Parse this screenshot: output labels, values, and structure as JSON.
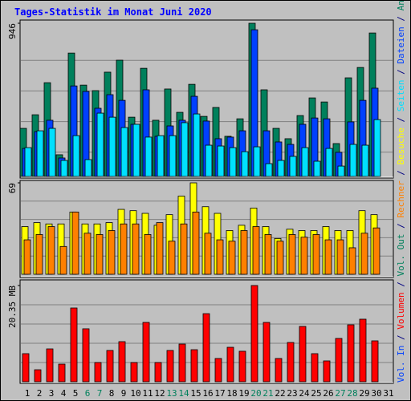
{
  "chart_data": [
    {
      "type": "bar",
      "title": "Tages-Statistik im Monat Juni 2020",
      "ylim": [
        0,
        946
      ],
      "yticks": [
        946
      ],
      "series": [
        {
          "name": "Anfragen",
          "color": "#00805c",
          "values": [
            297,
            381,
            579,
            134,
            762,
            564,
            530,
            644,
            718,
            366,
            668,
            347,
            540,
            396,
            569,
            371,
            426,
            248,
            356,
            946,
            535,
            297,
            233,
            376,
            485,
            460,
            203,
            609,
            673,
            886,
            null
          ]
        },
        {
          "name": "Dateien",
          "color": "#0040ff",
          "values": [
            173,
            277,
            347,
            114,
            559,
            525,
            421,
            505,
            470,
            322,
            535,
            248,
            312,
            347,
            495,
            342,
            233,
            243,
            282,
            906,
            282,
            213,
            198,
            322,
            361,
            356,
            149,
            337,
            470,
            545,
            null
          ]
        },
        {
          "name": "Seiten",
          "color": "#00e0ff",
          "values": [
            178,
            282,
            297,
            99,
            252,
            104,
            391,
            366,
            302,
            322,
            243,
            252,
            252,
            332,
            386,
            193,
            188,
            178,
            153,
            183,
            79,
            99,
            124,
            178,
            94,
            173,
            64,
            198,
            193,
            351,
            null
          ]
        }
      ]
    },
    {
      "type": "bar",
      "ylim": [
        0,
        69
      ],
      "yticks": [
        69
      ],
      "series": [
        {
          "name": "Besuche",
          "color": "#ffff00",
          "values": [
            36,
            39,
            38,
            38,
            47,
            38,
            38,
            39,
            49,
            48,
            46,
            37,
            45,
            59,
            69,
            51,
            46,
            33,
            37,
            50,
            36,
            27,
            34,
            33,
            33,
            36,
            33,
            33,
            48,
            45,
            null
          ]
        },
        {
          "name": "Rechner",
          "color": "#ff8000",
          "values": [
            26,
            30,
            36,
            21,
            47,
            31,
            30,
            33,
            38,
            38,
            30,
            39,
            25,
            38,
            47,
            31,
            26,
            25,
            33,
            36,
            30,
            25,
            30,
            28,
            30,
            26,
            26,
            20,
            31,
            35,
            null
          ]
        }
      ],
      "extra_legend": [
        {
          "name": "Vol. Out",
          "color": "#00805c"
        }
      ]
    },
    {
      "type": "bar",
      "ylim": [
        0,
        20.35
      ],
      "yticks": [
        {
          "value": 20.35,
          "label": "20.35 MB"
        }
      ],
      "series": [
        {
          "name": "Volumen",
          "color": "#ff0000",
          "values": [
            5.94,
            2.54,
            6.95,
            3.73,
            15.6,
            11.2,
            4.07,
            6.62,
            8.48,
            4.07,
            12.55,
            4.07,
            6.62,
            7.97,
            6.78,
            14.4,
            4.92,
            7.29,
            6.45,
            20.35,
            12.55,
            4.92,
            8.31,
            11.7,
            5.94,
            4.41,
            9.16,
            12.04,
            13.23,
            8.65,
            null
          ]
        }
      ],
      "extra_legend": [
        {
          "name": "Vol. In",
          "color": "#0040ff"
        }
      ],
      "categories": [
        "1",
        "2",
        "3",
        "4",
        "5",
        "6",
        "7",
        "8",
        "9",
        "10",
        "11",
        "12",
        "13",
        "14",
        "15",
        "16",
        "17",
        "18",
        "19",
        "20",
        "21",
        "22",
        "23",
        "24",
        "25",
        "26",
        "27",
        "28",
        "29",
        "30",
        "31"
      ],
      "category_colors": [
        "#000000",
        "#000000",
        "#000000",
        "#000000",
        "#000000",
        "#00805c",
        "#00805c",
        "#000000",
        "#000000",
        "#000000",
        "#000000",
        "#000000",
        "#00805c",
        "#00805c",
        "#000000",
        "#000000",
        "#000000",
        "#000000",
        "#000000",
        "#00805c",
        "#00805c",
        "#000000",
        "#000000",
        "#000000",
        "#000000",
        "#000000",
        "#00805c",
        "#00805c",
        "#000000",
        "#000000",
        "#000000"
      ]
    }
  ]
}
